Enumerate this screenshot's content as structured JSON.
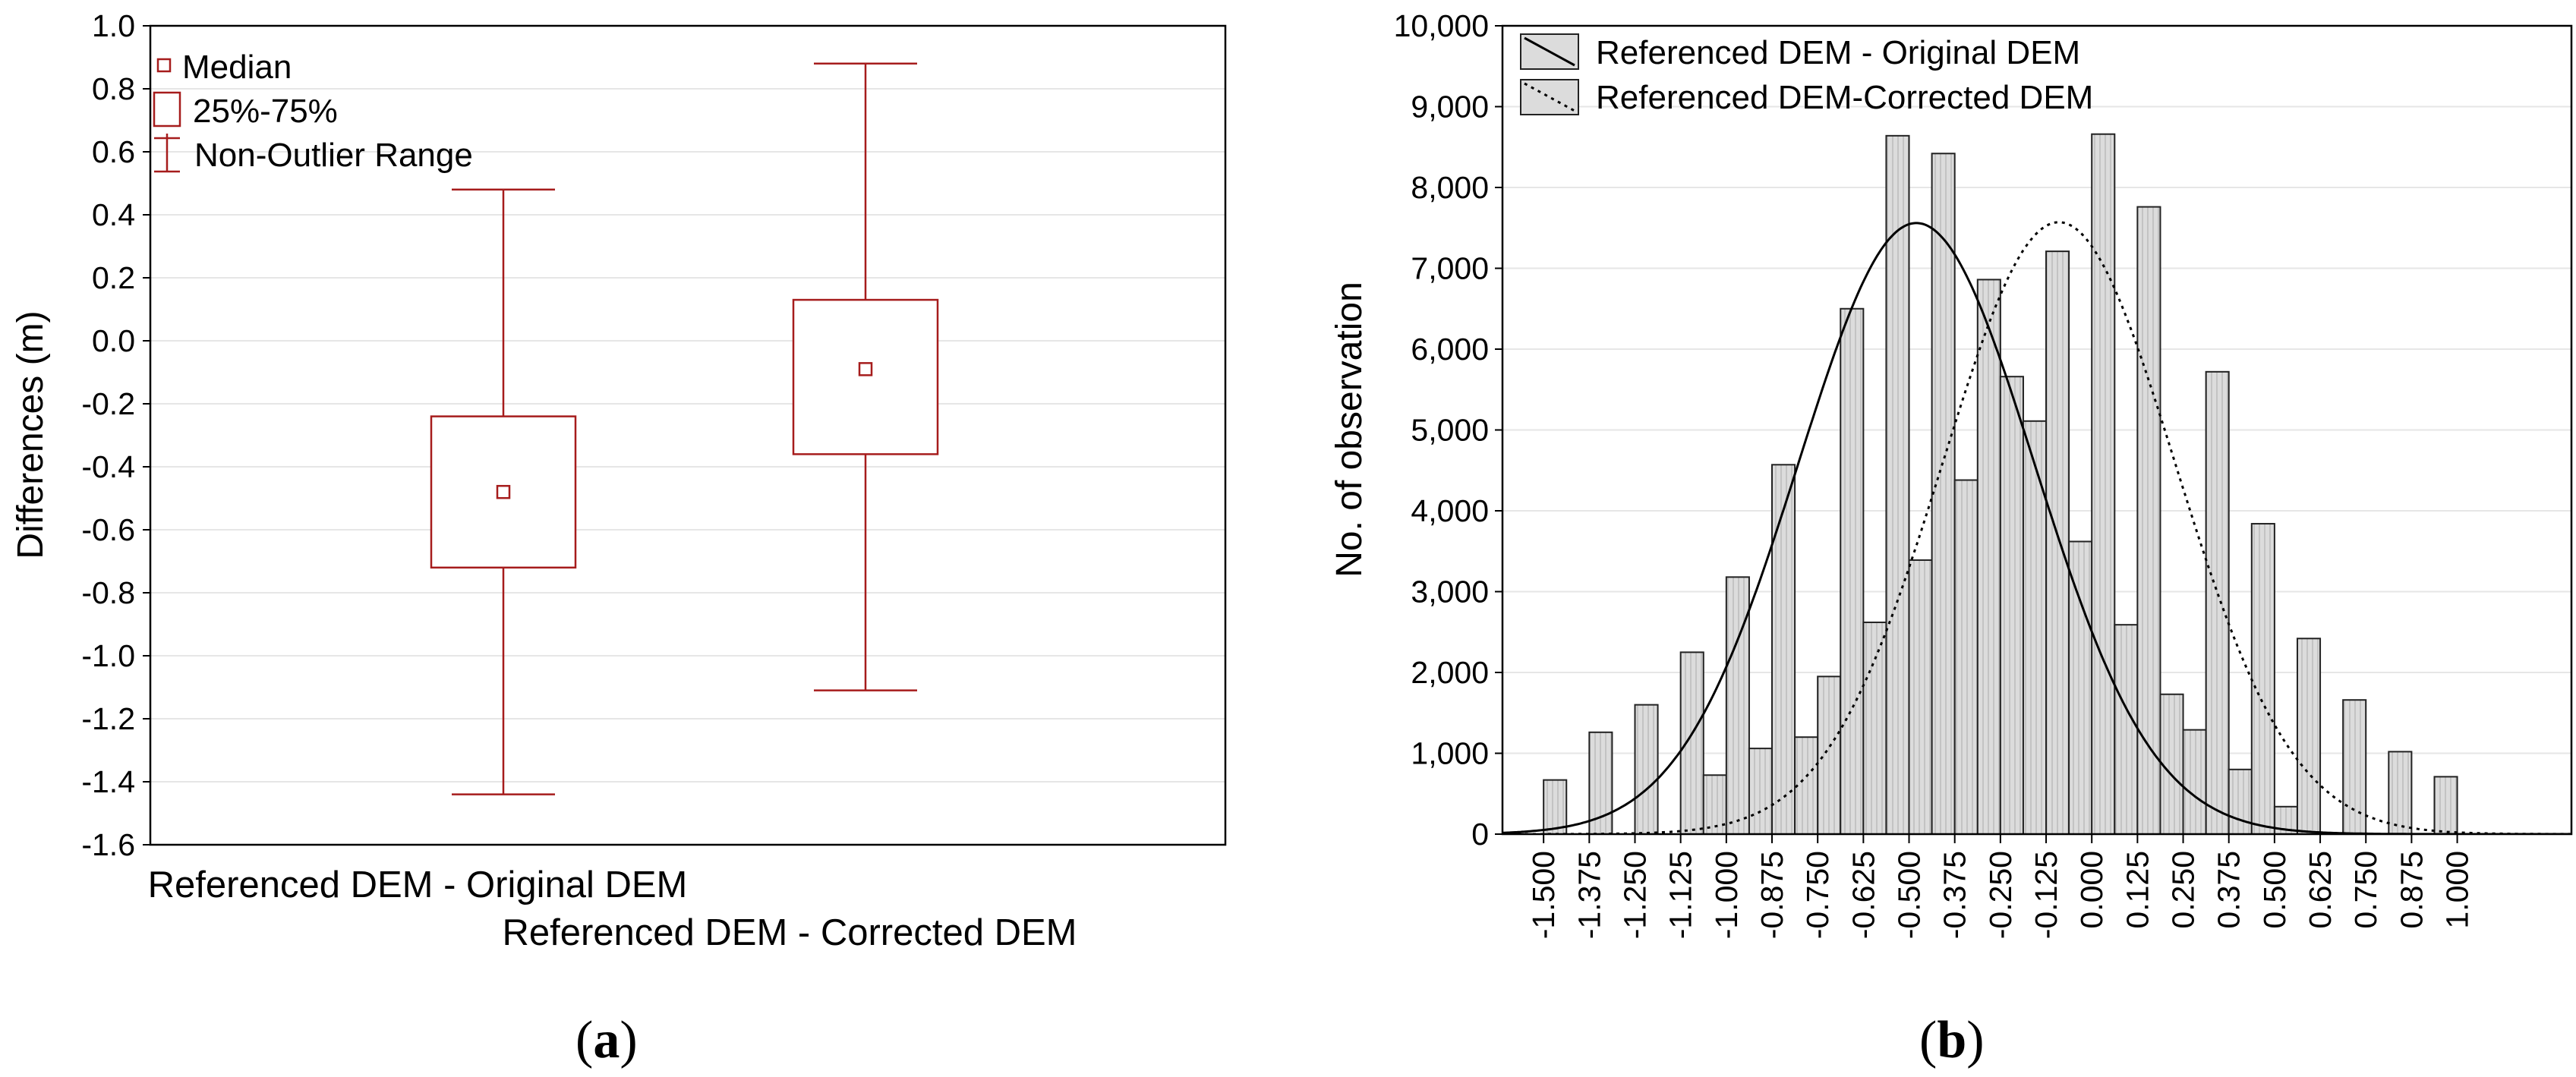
{
  "colors": {
    "box": "#a61c1c",
    "bar_fill": "#dcdcdc",
    "bar_hatch": "#bdbdbd",
    "bar_stroke": "#222222",
    "curve": "#000000",
    "grid": "#e6e6e6"
  },
  "chart_data": [
    {
      "type": "boxplot",
      "panel_label": "a",
      "ylabel": "Differences (m)",
      "ylim": [
        -1.6,
        1.0
      ],
      "yticks": [
        1.0,
        0.8,
        0.6,
        0.4,
        0.2,
        0.0,
        -0.2,
        -0.4,
        -0.6,
        -0.8,
        -1.0,
        -1.2,
        -1.4,
        -1.6
      ],
      "ytick_labels": [
        "1.0",
        "0.8",
        "0.6",
        "0.4",
        "0.2",
        "0.0",
        "-0.2",
        "-0.4",
        "-0.6",
        "-0.8",
        "-1.0",
        "-1.2",
        "-1.4",
        "-1.6"
      ],
      "grid": true,
      "legend": {
        "position": "top-left",
        "entries": [
          "Median",
          "25%-75%",
          "Non-Outlier Range"
        ]
      },
      "series": [
        {
          "name": "Referenced DEM - Original DEM",
          "median": -0.48,
          "q1": -0.72,
          "q3": -0.24,
          "whisker_low": -1.44,
          "whisker_high": 0.48
        },
        {
          "name": "Referenced DEM - Corrected DEM",
          "median": -0.09,
          "q1": -0.36,
          "q3": 0.13,
          "whisker_low": -1.11,
          "whisker_high": 0.88
        }
      ]
    },
    {
      "type": "histogram",
      "panel_label": "b",
      "ylabel": "No. of observation",
      "ylim": [
        0,
        10000
      ],
      "yticks": [
        10000,
        9000,
        8000,
        7000,
        6000,
        5000,
        4000,
        3000,
        2000,
        1000,
        0
      ],
      "ytick_labels": [
        "10,000",
        "9,000",
        "8,000",
        "7,000",
        "6,000",
        "5,000",
        "4,000",
        "3,000",
        "2,000",
        "1,000",
        "0"
      ],
      "xlim": [
        -1.6125,
        1.3125
      ],
      "xticks": [
        -1.5,
        -1.375,
        -1.25,
        -1.125,
        -1.0,
        -0.875,
        -0.75,
        -0.625,
        -0.5,
        -0.375,
        -0.25,
        -0.125,
        0.0,
        0.125,
        0.25,
        0.375,
        0.5,
        0.625,
        0.75,
        0.875,
        1.0
      ],
      "xtick_labels": [
        "-1.500",
        "-1.375",
        "-1.250",
        "-1.125",
        "-1.000",
        "-0.875",
        "-0.750",
        "-0.625",
        "-0.500",
        "-0.375",
        "-0.250",
        "-0.125",
        "0.000",
        "0.125",
        "0.250",
        "0.375",
        "0.500",
        "0.625",
        "0.750",
        "0.875",
        "1.000"
      ],
      "grid": true,
      "legend": {
        "position": "top-left",
        "entries": [
          "Referenced DEM - Original DEM",
          "Referenced DEM-Corrected DEM"
        ]
      },
      "bin_width": 0.0625,
      "bins": [
        {
          "x0": -1.5,
          "x1": -1.4375,
          "value": 670
        },
        {
          "x0": -1.375,
          "x1": -1.3125,
          "value": 1260
        },
        {
          "x0": -1.25,
          "x1": -1.1875,
          "value": 1600
        },
        {
          "x0": -1.125,
          "x1": -1.0625,
          "value": 2250
        },
        {
          "x0": -1.0625,
          "x1": -1.0,
          "value": 730
        },
        {
          "x0": -1.0,
          "x1": -0.9375,
          "value": 3180
        },
        {
          "x0": -0.9375,
          "x1": -0.875,
          "value": 1060
        },
        {
          "x0": -0.875,
          "x1": -0.8125,
          "value": 4570
        },
        {
          "x0": -0.8125,
          "x1": -0.75,
          "value": 1200
        },
        {
          "x0": -0.75,
          "x1": -0.6875,
          "value": 1950
        },
        {
          "x0": -0.6875,
          "x1": -0.625,
          "value": 6500
        },
        {
          "x0": -0.625,
          "x1": -0.5625,
          "value": 2620
        },
        {
          "x0": -0.5625,
          "x1": -0.5,
          "value": 8640
        },
        {
          "x0": -0.5,
          "x1": -0.4375,
          "value": 3390
        },
        {
          "x0": -0.4375,
          "x1": -0.375,
          "value": 8420
        },
        {
          "x0": -0.375,
          "x1": -0.3125,
          "value": 4380
        },
        {
          "x0": -0.3125,
          "x1": -0.25,
          "value": 6860
        },
        {
          "x0": -0.25,
          "x1": -0.1875,
          "value": 5660
        },
        {
          "x0": -0.1875,
          "x1": -0.125,
          "value": 5110
        },
        {
          "x0": -0.125,
          "x1": -0.0625,
          "value": 7210
        },
        {
          "x0": -0.0625,
          "x1": 0.0,
          "value": 3620
        },
        {
          "x0": 0.0,
          "x1": 0.0625,
          "value": 8660
        },
        {
          "x0": 0.0625,
          "x1": 0.125,
          "value": 2590
        },
        {
          "x0": 0.125,
          "x1": 0.1875,
          "value": 7760
        },
        {
          "x0": 0.1875,
          "x1": 0.25,
          "value": 1730
        },
        {
          "x0": 0.25,
          "x1": 0.3125,
          "value": 1290
        },
        {
          "x0": 0.3125,
          "x1": 0.375,
          "value": 5720
        },
        {
          "x0": 0.375,
          "x1": 0.4375,
          "value": 800
        },
        {
          "x0": 0.4375,
          "x1": 0.5,
          "value": 3840
        },
        {
          "x0": 0.5,
          "x1": 0.5625,
          "value": 340
        },
        {
          "x0": 0.5625,
          "x1": 0.625,
          "value": 2420
        },
        {
          "x0": 0.6875,
          "x1": 0.75,
          "value": 1660
        },
        {
          "x0": 0.8125,
          "x1": 0.875,
          "value": 1020
        },
        {
          "x0": 0.9375,
          "x1": 1.0,
          "value": 710
        }
      ],
      "curves": [
        {
          "name": "Referenced DEM - Original DEM",
          "style": "solid",
          "peak_x": -0.48,
          "peak_value": 7560,
          "sd": 0.323
        },
        {
          "name": "Referenced DEM-Corrected DEM",
          "style": "dotted",
          "peak_x": -0.09,
          "peak_value": 7570,
          "sd": 0.318
        }
      ]
    }
  ]
}
